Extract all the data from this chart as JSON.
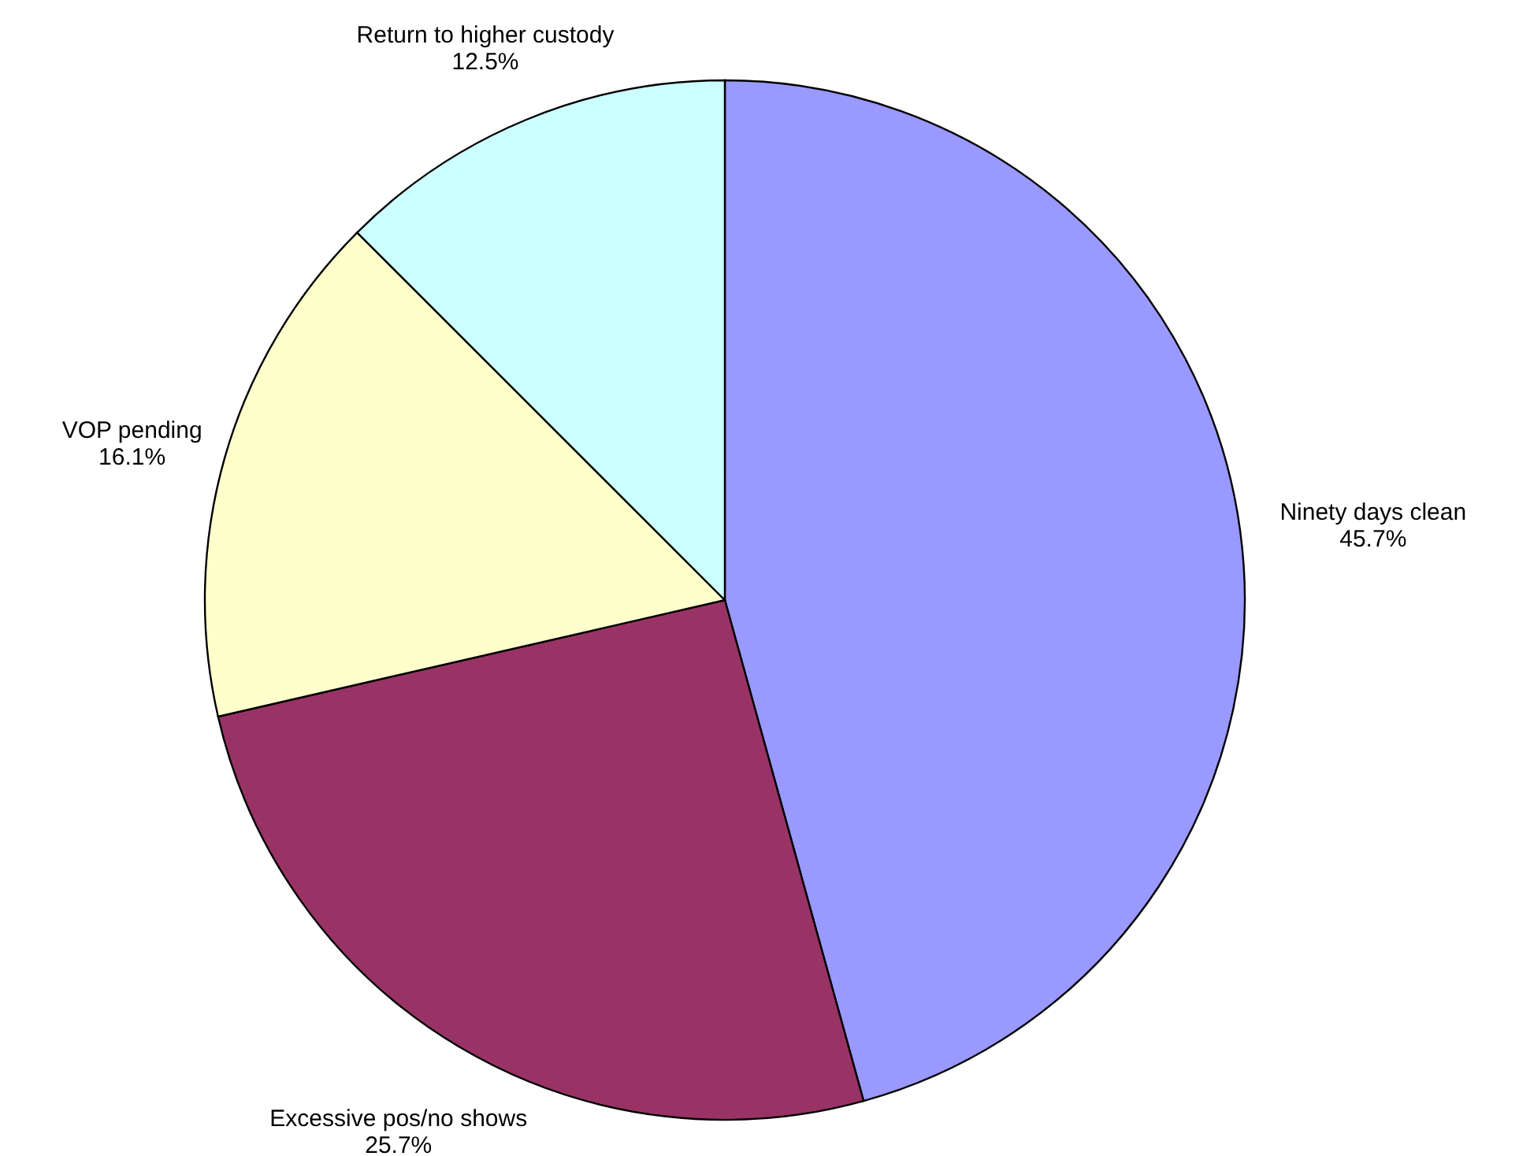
{
  "chart_data": {
    "type": "pie",
    "categories": [
      "Ninety days clean",
      "Excessive pos/no shows",
      "VOP pending",
      "Return to higher custody"
    ],
    "values": [
      45.7,
      25.7,
      16.1,
      12.5
    ],
    "colors": [
      "#9999ff",
      "#993366",
      "#ffffcc",
      "#ccffff"
    ],
    "value_labels": [
      "45.7%",
      "25.7%",
      "16.1%",
      "12.5%"
    ]
  }
}
